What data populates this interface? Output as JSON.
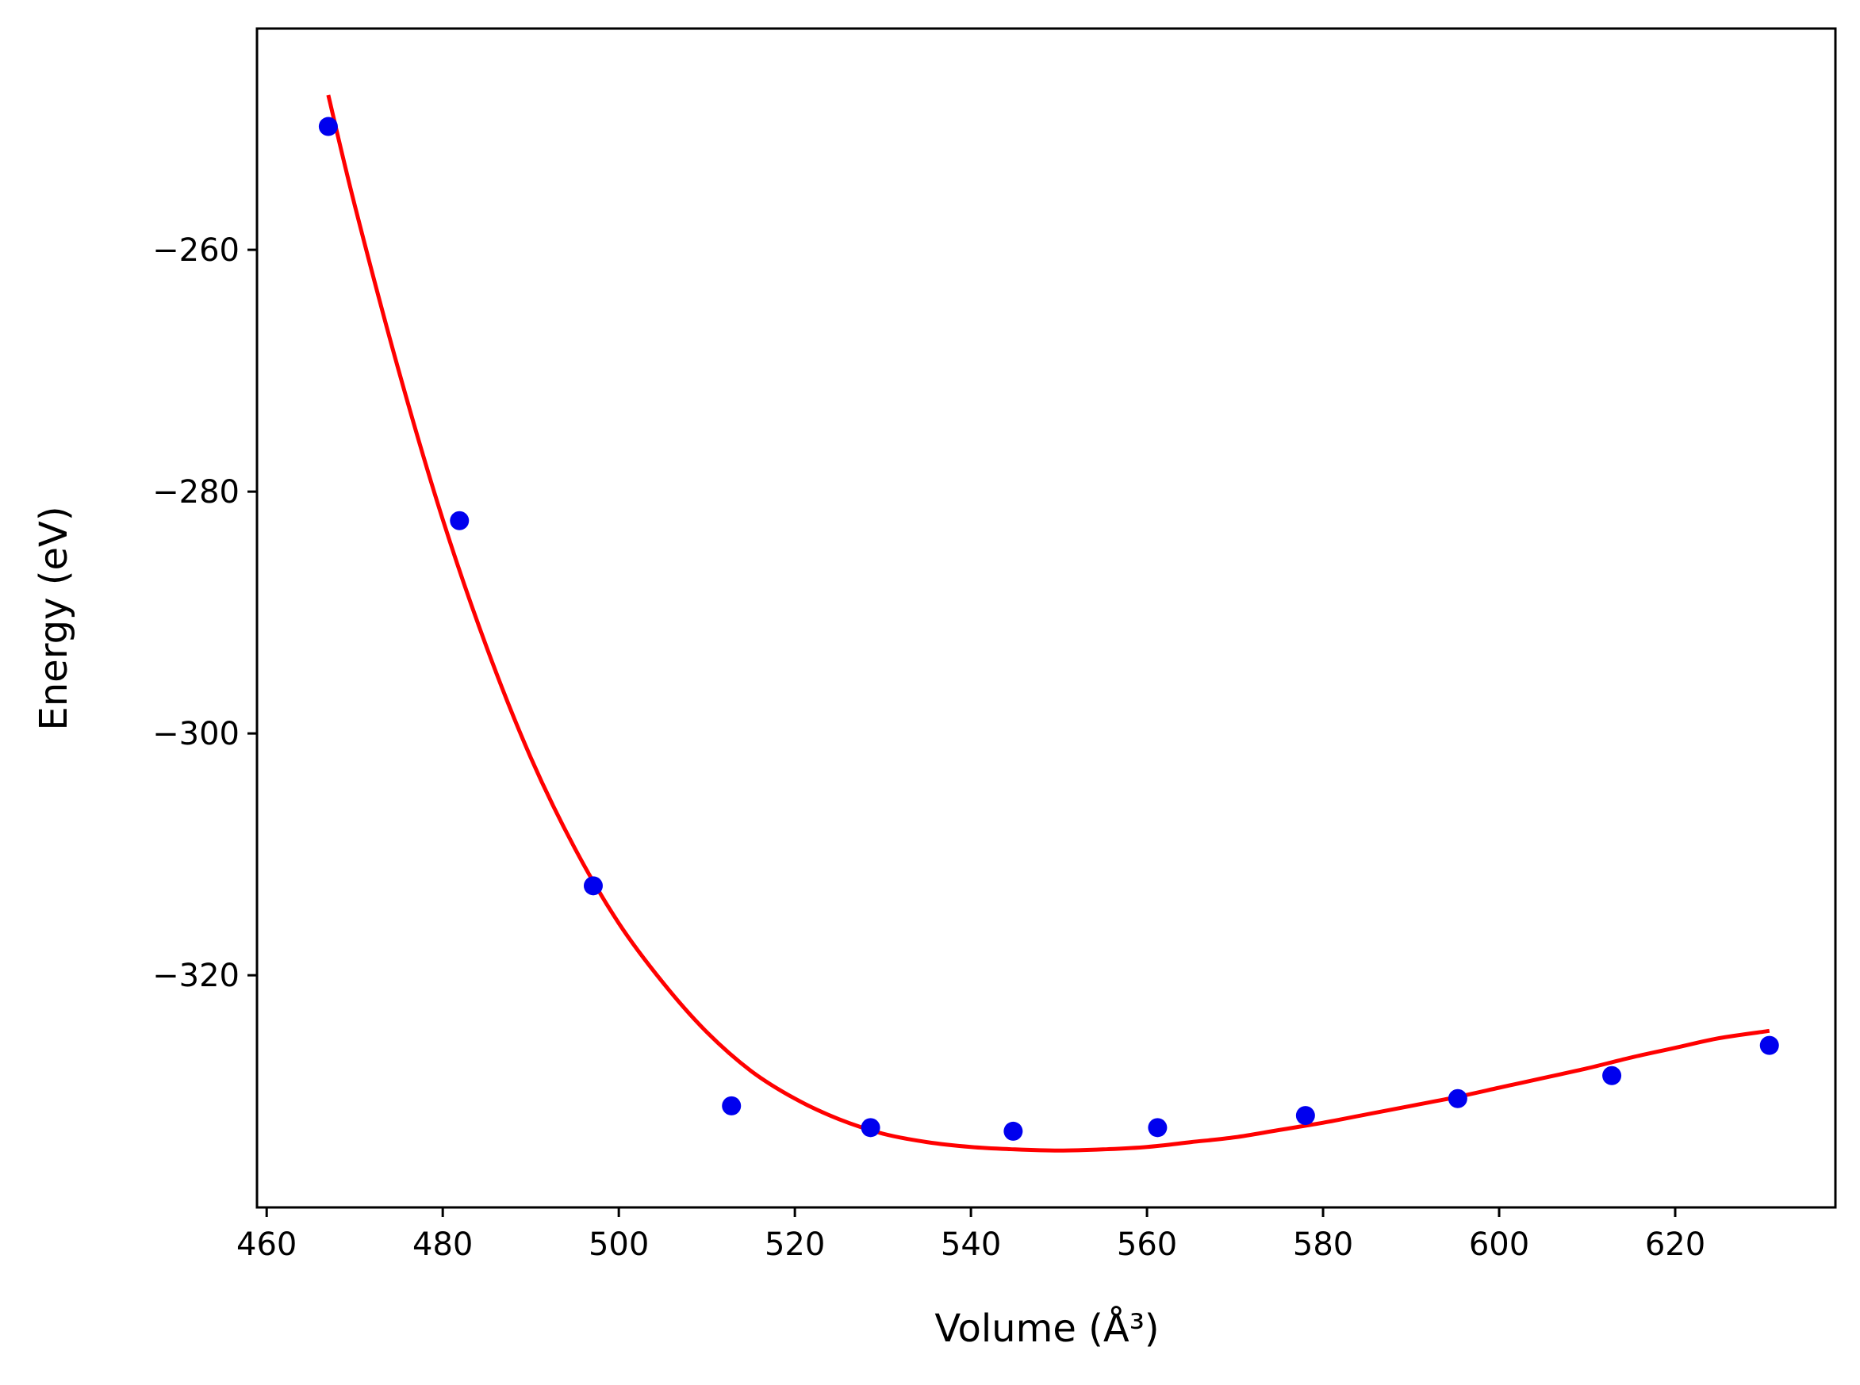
{
  "chart_data": {
    "type": "scatter",
    "title": "",
    "xlabel": "Volume (Å³)",
    "ylabel": "Energy (eV)",
    "xlim": [
      458.9,
      638.2
    ],
    "ylim": [
      -339.2,
      -241.7
    ],
    "xticks": [
      460,
      480,
      500,
      520,
      540,
      560,
      580,
      600,
      620
    ],
    "yticks": [
      -260,
      -280,
      -300,
      -320
    ],
    "xtick_labels": [
      "460",
      "480",
      "500",
      "520",
      "540",
      "560",
      "580",
      "600",
      "620"
    ],
    "ytick_labels": [
      "−260",
      "−280",
      "−300",
      "−320"
    ],
    "grid": false,
    "legend": "none",
    "series": [
      {
        "kind": "scatter",
        "color": "#0000ee",
        "x": [
          467.0,
          481.9,
          497.1,
          512.8,
          528.6,
          544.8,
          561.2,
          578.0,
          595.3,
          612.8,
          630.7
        ],
        "y": [
          -249.8,
          -282.4,
          -312.6,
          -330.8,
          -332.6,
          -332.9,
          -332.6,
          -331.6,
          -330.2,
          -328.3,
          -325.8
        ]
      },
      {
        "kind": "line",
        "color": "#ff0000",
        "x": [
          467.0,
          470,
          475,
          480,
          485,
          490,
          495,
          500,
          505,
          510,
          515,
          520,
          525,
          530,
          535,
          540,
          545,
          550,
          555,
          560,
          565,
          570,
          575,
          580,
          585,
          590,
          595,
          600,
          605,
          610,
          615,
          620,
          625,
          630.7
        ],
        "y": [
          -247.2,
          -256.3,
          -270.0,
          -282.3,
          -292.9,
          -302.0,
          -309.5,
          -315.7,
          -320.6,
          -324.7,
          -327.9,
          -330.2,
          -331.9,
          -333.1,
          -333.8,
          -334.2,
          -334.4,
          -334.5,
          -334.4,
          -334.2,
          -333.8,
          -333.4,
          -332.8,
          -332.2,
          -331.5,
          -330.8,
          -330.1,
          -329.3,
          -328.5,
          -327.7,
          -326.8,
          -326.0,
          -325.2,
          -324.6
        ]
      }
    ]
  }
}
